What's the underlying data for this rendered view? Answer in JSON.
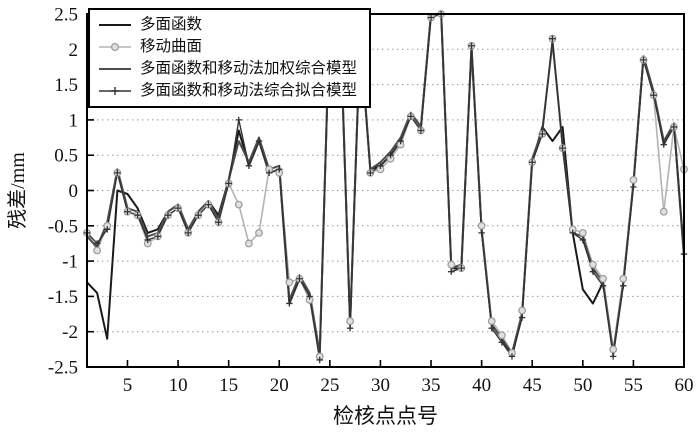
{
  "figure": {
    "title": "",
    "ylabel": "残差/mm",
    "xlabel": "检核点点号"
  },
  "chart_data": {
    "type": "line",
    "title": "",
    "xlabel": "检核点点号",
    "ylabel": "残差/mm",
    "xlim": [
      1,
      60
    ],
    "ylim": [
      -2.5,
      2.5
    ],
    "xticks": [
      5,
      10,
      15,
      20,
      25,
      30,
      35,
      40,
      45,
      50,
      55,
      60
    ],
    "yticks": [
      -2.5,
      -2,
      -1.5,
      -1,
      -0.5,
      0,
      0.5,
      1,
      1.5,
      2,
      2.5
    ],
    "ytick_labels": [
      "-2.5",
      "-2",
      "-1.5",
      "-1",
      "-0.5",
      "0",
      "0.5",
      "1",
      "1.5",
      "2",
      "2.5"
    ],
    "grid": "horizontal-dotted",
    "grid_color": "#999999",
    "frame_color": "#000000",
    "legend_position": "top-left",
    "x": [
      1,
      2,
      3,
      4,
      5,
      6,
      7,
      8,
      9,
      10,
      11,
      12,
      13,
      14,
      15,
      16,
      17,
      18,
      19,
      20,
      21,
      22,
      23,
      24,
      25,
      26,
      27,
      28,
      29,
      30,
      31,
      32,
      33,
      34,
      35,
      36,
      37,
      38,
      39,
      40,
      41,
      42,
      43,
      44,
      45,
      46,
      47,
      48,
      49,
      50,
      51,
      52,
      53,
      54,
      55,
      56,
      57,
      58,
      59,
      60
    ],
    "series": [
      {
        "name": "多面函数",
        "color": "#1a1a1a",
        "marker": "none",
        "width": 2,
        "values": [
          -1.3,
          -1.45,
          -2.1,
          0.0,
          -0.05,
          -0.25,
          -0.6,
          -0.55,
          -0.3,
          -0.2,
          -0.6,
          -0.3,
          -0.15,
          -0.35,
          0.15,
          0.85,
          0.35,
          0.7,
          0.25,
          0.3,
          -1.6,
          -1.25,
          -1.5,
          -2.35,
          2.55,
          2.45,
          -1.9,
          2.2,
          0.3,
          0.35,
          0.5,
          0.7,
          1.1,
          0.9,
          2.5,
          2.55,
          -1.1,
          -1.1,
          2.05,
          -0.55,
          -1.9,
          -2.1,
          -2.35,
          -1.75,
          0.4,
          0.9,
          0.7,
          0.9,
          -0.6,
          -1.4,
          -1.6,
          -1.3,
          -2.3,
          -1.3,
          0.1,
          1.9,
          1.4,
          0.65,
          0.95,
          -0.9
        ]
      },
      {
        "name": "移动曲面",
        "color": "#b3b3b3",
        "marker": "circle",
        "marker_fill": "#e0e0e0",
        "marker_edge": "#9a9a9a",
        "width": 1.6,
        "values": [
          -0.6,
          -0.85,
          -0.5,
          0.25,
          -0.3,
          -0.35,
          -0.75,
          -0.65,
          -0.35,
          -0.25,
          -0.6,
          -0.35,
          -0.2,
          -0.45,
          0.1,
          -0.2,
          -0.75,
          -0.6,
          0.3,
          0.25,
          -1.3,
          -1.25,
          -1.55,
          -2.35,
          2.5,
          2.45,
          -1.85,
          2.2,
          0.25,
          0.3,
          0.45,
          0.65,
          1.05,
          0.85,
          2.45,
          2.5,
          -1.05,
          -1.1,
          2.05,
          -0.5,
          -1.85,
          -2.05,
          -2.3,
          -1.7,
          0.4,
          0.8,
          2.15,
          0.6,
          -0.55,
          -0.6,
          -1.05,
          -1.25,
          -2.25,
          -1.25,
          0.15,
          1.85,
          1.35,
          -0.3,
          0.9,
          0.3
        ]
      },
      {
        "name": "多面函数和移动法加权综合模型",
        "color": "#4d4d4d",
        "marker": "none",
        "width": 2,
        "values": [
          -0.65,
          -0.8,
          -0.45,
          0.3,
          -0.25,
          -0.3,
          -0.65,
          -0.6,
          -0.3,
          -0.2,
          -0.55,
          -0.3,
          -0.15,
          -0.4,
          0.15,
          0.7,
          0.4,
          0.75,
          0.3,
          0.35,
          -1.55,
          -1.2,
          -1.45,
          -2.3,
          2.55,
          2.5,
          -1.9,
          2.15,
          0.3,
          0.4,
          0.55,
          0.75,
          1.1,
          0.9,
          2.5,
          2.55,
          -1.1,
          -1.05,
          2.0,
          -0.55,
          -1.9,
          -2.1,
          -2.3,
          -1.75,
          0.45,
          0.85,
          2.1,
          0.65,
          -0.6,
          -0.65,
          -1.1,
          -1.3,
          -2.3,
          -1.3,
          0.1,
          1.9,
          1.4,
          0.7,
          0.95,
          -0.95
        ]
      },
      {
        "name": "多面函数和移动法综合拟合模型",
        "color": "#333333",
        "marker": "plus",
        "width": 1.4,
        "values": [
          -0.6,
          -0.75,
          -0.55,
          0.25,
          -0.3,
          -0.35,
          -0.7,
          -0.65,
          -0.35,
          -0.25,
          -0.6,
          -0.35,
          -0.2,
          -0.45,
          0.1,
          1.0,
          0.35,
          0.7,
          0.25,
          0.3,
          -1.6,
          -1.25,
          -1.5,
          -2.4,
          2.5,
          2.45,
          -1.95,
          2.2,
          0.25,
          0.35,
          0.5,
          0.7,
          1.05,
          0.85,
          2.45,
          2.5,
          -1.15,
          -1.1,
          2.05,
          -0.6,
          -1.95,
          -2.15,
          -2.35,
          -1.8,
          0.4,
          0.8,
          2.15,
          0.6,
          -0.6,
          -0.7,
          -1.15,
          -1.35,
          -2.35,
          -1.35,
          0.05,
          1.85,
          1.35,
          0.65,
          0.9,
          -0.9
        ]
      }
    ]
  }
}
